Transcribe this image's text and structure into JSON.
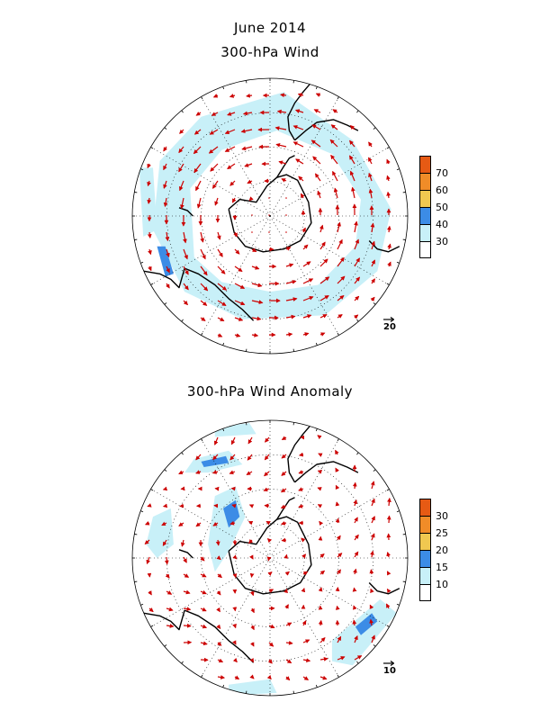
{
  "header": {
    "line1": "June 2014",
    "line2": "300-hPa Wind"
  },
  "panels": [
    {
      "title": "300-hPa Wind",
      "reference_vector_label": "20",
      "colorbar": {
        "levels": [
          "30",
          "40",
          "50",
          "60",
          "70"
        ],
        "colors": [
          "#ffffff",
          "#c8f0f8",
          "#3c8ce6",
          "#f0c850",
          "#f08c28",
          "#e65a14"
        ]
      }
    },
    {
      "title": "300-hPa Wind Anomaly",
      "reference_vector_label": "10",
      "colorbar": {
        "levels": [
          "10",
          "15",
          "20",
          "25",
          "30"
        ],
        "colors": [
          "#ffffff",
          "#c8f0f8",
          "#3c8ce6",
          "#f0c850",
          "#f08c28",
          "#e65a14"
        ]
      }
    }
  ],
  "colors": {
    "vector": "#cc0000",
    "coast": "#000000",
    "grid": "#000000"
  }
}
